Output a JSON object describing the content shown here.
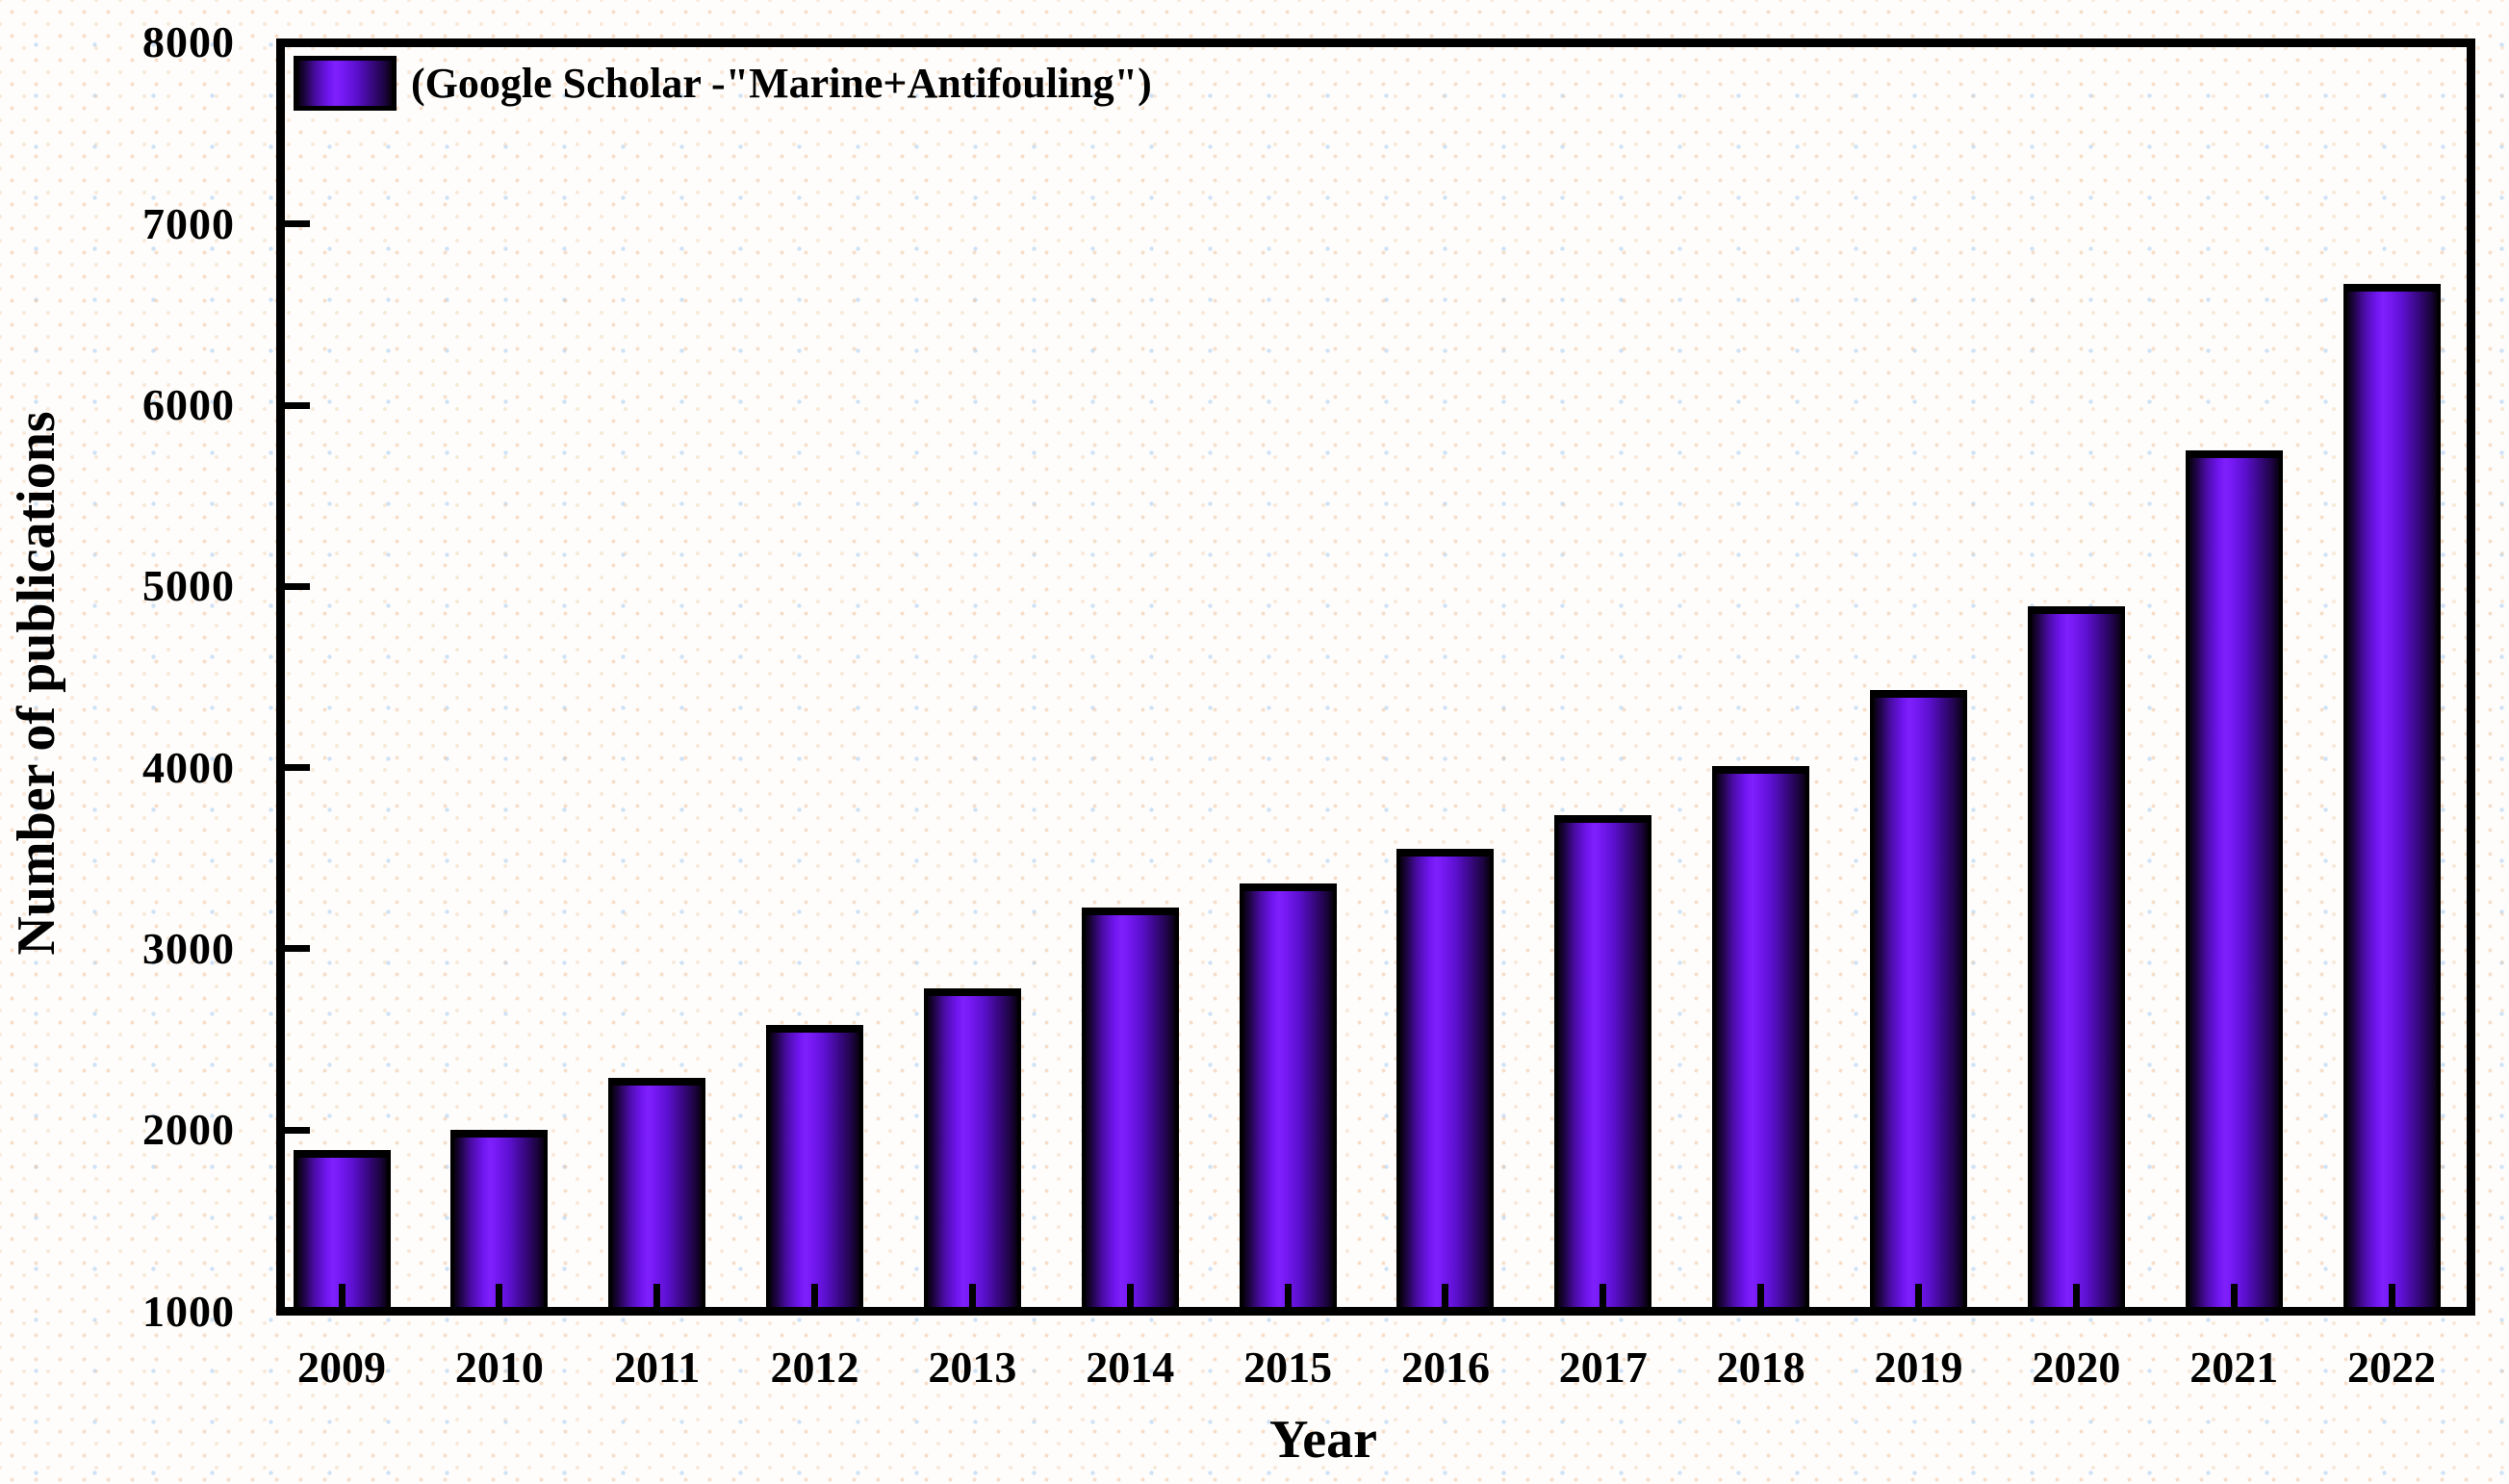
{
  "chart_data": {
    "type": "bar",
    "title": "",
    "legend_label": "(Google Scholar -\"Marine+Antifouling\")",
    "xlabel": "Year",
    "ylabel": "Number of publications",
    "categories": [
      "2009",
      "2010",
      "2011",
      "2012",
      "2013",
      "2014",
      "2015",
      "2016",
      "2017",
      "2018",
      "2019",
      "2020",
      "2021",
      "2022"
    ],
    "values": [
      1890,
      2000,
      2290,
      2580,
      2780,
      3230,
      3360,
      3550,
      3740,
      4010,
      4430,
      4890,
      5750,
      6670
    ],
    "ylim": [
      1000,
      8000
    ],
    "yticks": [
      1000,
      2000,
      3000,
      4000,
      5000,
      6000,
      7000,
      8000
    ],
    "grid": false,
    "legend_position": "top-left-inside",
    "bar_style": {
      "outline_color": "#000000",
      "gradient": [
        "#08010f",
        "#4b0ca6",
        "#7f20fc",
        "#3a0885",
        "#08010f"
      ]
    }
  },
  "colors": {
    "text": "#000000",
    "axis": "#000000",
    "background": "#fefdfc",
    "background_dot_warm": "#ecc098",
    "background_dot_cool": "#96c0ee",
    "bar_bright": "#7f20fc",
    "bar_dark": "#1d0442"
  }
}
